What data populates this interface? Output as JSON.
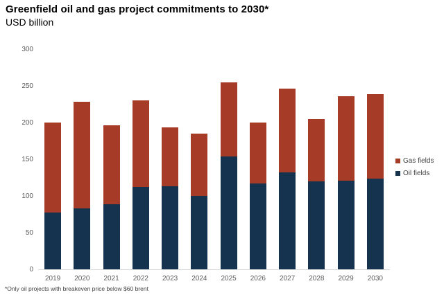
{
  "header": {
    "title": "Greenfield oil and gas project commitments to 2030*",
    "subtitle": "USD billion"
  },
  "chart_data": {
    "type": "bar",
    "stacked": true,
    "title": "Greenfield oil and gas project commitments to 2030*",
    "ylabel_unit": "USD billion",
    "categories": [
      "2019",
      "2020",
      "2021",
      "2022",
      "2023",
      "2024",
      "2025",
      "2026",
      "2027",
      "2028",
      "2029",
      "2030"
    ],
    "series": [
      {
        "name": "Gas fields",
        "color": "#a63b28",
        "values": [
          123,
          145,
          107,
          118,
          80,
          85,
          101,
          83,
          114,
          85,
          115,
          115
        ]
      },
      {
        "name": "Oil fields",
        "color": "#15334e",
        "values": [
          77,
          83,
          89,
          112,
          113,
          100,
          154,
          117,
          132,
          120,
          121,
          124
        ]
      }
    ],
    "stack_order_bottom_to_top": [
      "Oil fields",
      "Gas fields"
    ],
    "totals": [
      200,
      228,
      196,
      230,
      193,
      185,
      255,
      200,
      246,
      205,
      236,
      239
    ],
    "ylim": [
      0,
      300
    ],
    "yticks": [
      0,
      50,
      100,
      150,
      200,
      250,
      300
    ],
    "grid": "none",
    "legend_position": "right",
    "axis_line_color": "#d9d9d9",
    "tick_label_color": "#595959"
  },
  "footnote": "*Only oil projects with breakeven price below $60 brent"
}
